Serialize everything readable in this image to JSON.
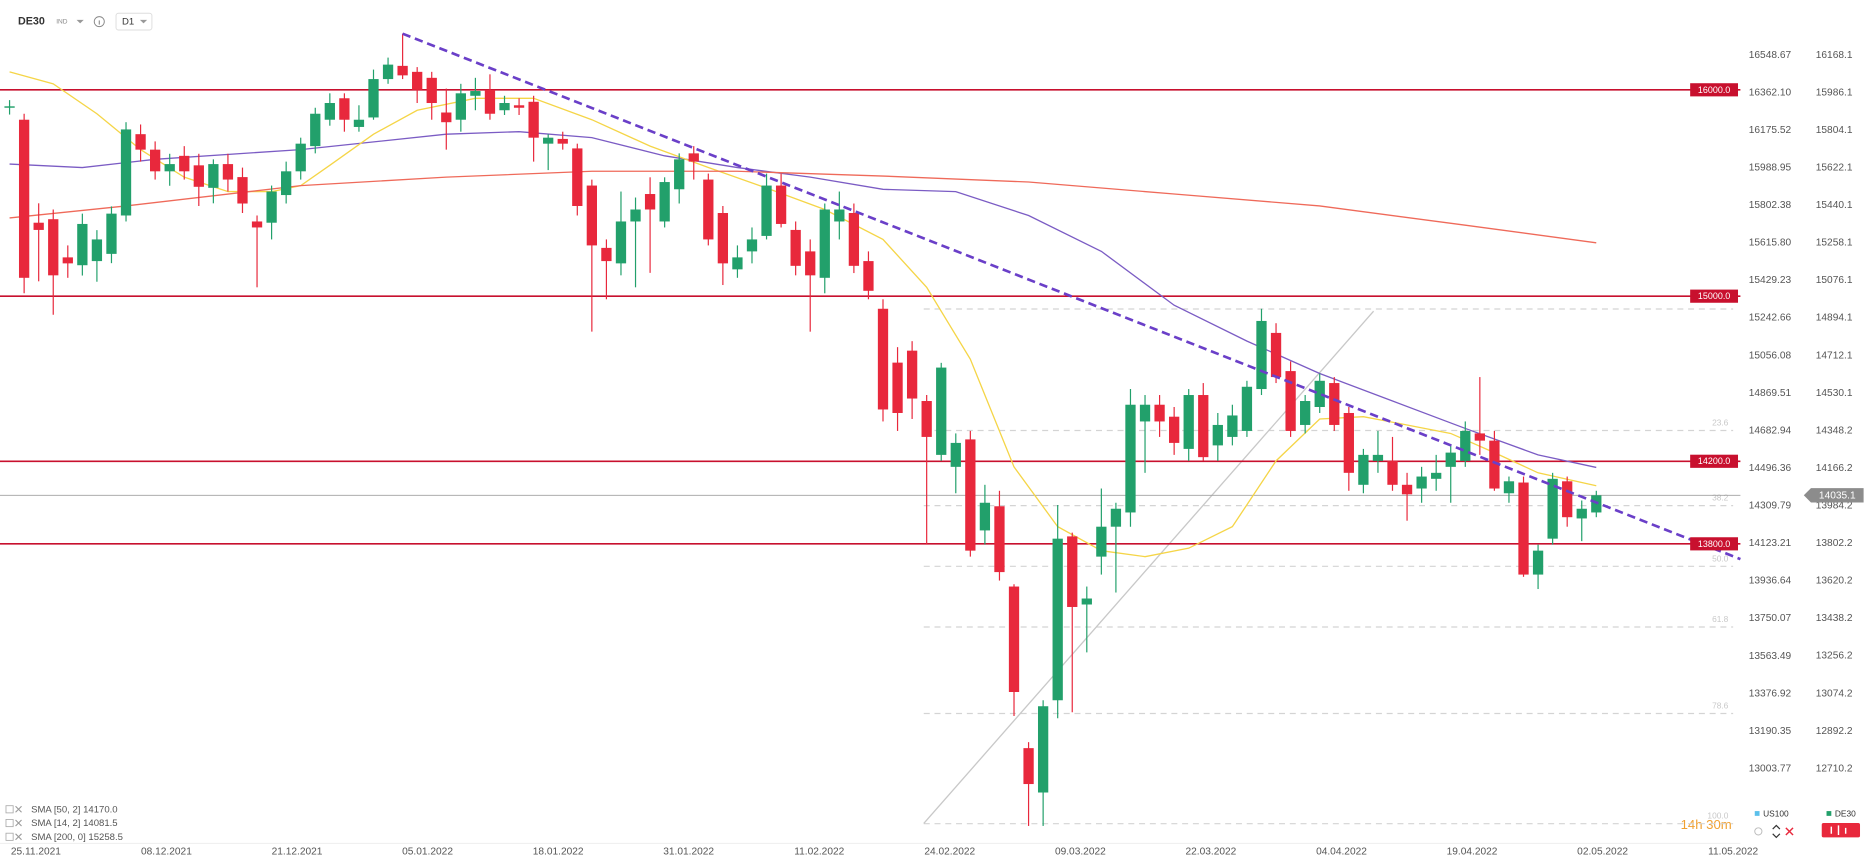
{
  "chart_data": {
    "type": "candlestick",
    "symbol": "DE30",
    "instrument_type": "IND",
    "timeframe": "D1",
    "countdown": "14h 30m",
    "categories": [
      "25.11.2021",
      "08.12.2021",
      "21.12.2021",
      "05.01.2022",
      "18.01.2022",
      "31.01.2022",
      "11.02.2022",
      "24.02.2022",
      "09.03.2022",
      "22.03.2022",
      "04.04.2022",
      "19.04.2022",
      "02.05.2022",
      "11.05.2022"
    ],
    "ylim": [
      12348.5,
      16434.7
    ],
    "yticks": [
      16168.1,
      15986.1,
      15804.1,
      15622.1,
      15440.1,
      15258.1,
      15076.1,
      14894.1,
      14712.1,
      14530.1,
      14348.2,
      14166.2,
      13984.2,
      13802.2,
      13620.2,
      13438.2,
      13256.2,
      13074.2,
      12892.2,
      12710.2
    ],
    "y2lim": [
      12633.1,
      16822.0
    ],
    "y2ticks": [
      16548.67,
      {
        "value": 16362.1,
        "label": "16362.10"
      },
      16175.52,
      15988.95,
      15802.38,
      {
        "value": 15615.8,
        "label": "15615.80"
      },
      15429.23,
      15242.66,
      15056.08,
      14869.51,
      14682.94,
      14496.36,
      14309.79,
      14123.21,
      13936.64,
      13750.07,
      13563.49,
      13376.92,
      13190.35,
      13003.77
    ],
    "grid": false,
    "comparison_legend": [
      {
        "name": "US100",
        "color": "#5bc0eb"
      },
      {
        "name": "DE30",
        "color": "#22a06b"
      }
    ],
    "series": [
      {
        "name": "DE30",
        "up_color": "#22a06b",
        "down_color": "#e8283c",
        "open": [
          15915,
          15855,
          15356,
          15373,
          15188,
          15150,
          15170,
          15205,
          15391,
          15785,
          15710,
          15605,
          15680,
          15634,
          15525,
          15640,
          15577,
          15362,
          15356,
          15490,
          15605,
          15727,
          15855,
          15959,
          15820,
          15866,
          16052,
          16116,
          16087,
          16058,
          15890,
          15855,
          15971,
          16000,
          15901,
          15925,
          15942,
          15739,
          15762,
          15716,
          15536,
          15234,
          15159,
          15362,
          15495,
          15362,
          15518,
          15692,
          15565,
          15403,
          15130,
          15217,
          15292,
          15536,
          15321,
          15217,
          15089,
          15362,
          15403,
          15170,
          14939,
          14678,
          14736,
          14492,
          14231,
          14173,
          14306,
          13865,
          13982,
          13593,
          12810,
          12595,
          13042,
          13836,
          13506,
          13738,
          13883,
          13952,
          14393,
          14474,
          14416,
          14260,
          14521,
          14277,
          14318,
          14347,
          14550,
          14822,
          14637,
          14376,
          14463,
          14579,
          14434,
          14086,
          14202,
          14202,
          14086,
          14068,
          14115,
          14173,
          14202,
          14335,
          14300,
          14045,
          14097,
          13651,
          13825,
          14103,
          13923,
          13952
        ],
        "high": [
          15950,
          15884,
          15450,
          15420,
          15246,
          15400,
          15320,
          15435,
          15843,
          15832,
          15750,
          15690,
          15727,
          15690,
          15663,
          15690,
          15623,
          15391,
          15536,
          15652,
          15768,
          15913,
          15983,
          15983,
          15925,
          16098,
          16156,
          16272,
          16110,
          16087,
          16006,
          16029,
          16058,
          16075,
          15971,
          15959,
          15971,
          15785,
          15797,
          15739,
          15565,
          15275,
          15507,
          15478,
          15576,
          15576,
          15692,
          15727,
          15594,
          15437,
          15246,
          15333,
          15594,
          15594,
          15362,
          15275,
          15449,
          15507,
          15449,
          15217,
          14985,
          14753,
          14782,
          14521,
          14677,
          14335,
          14347,
          14086,
          14057,
          13604,
          12839,
          13042,
          13988,
          13854,
          13593,
          14068,
          13999,
          14550,
          14521,
          14521,
          14463,
          14550,
          14579,
          14434,
          14474,
          14590,
          14939,
          14869,
          14684,
          14521,
          14625,
          14608,
          14463,
          14260,
          14347,
          14318,
          14144,
          14173,
          14231,
          14277,
          14393,
          14608,
          14347,
          14126,
          14126,
          13796,
          14144,
          14126,
          14010,
          14057
        ],
        "low": [
          15880,
          15014,
          15072,
          14910,
          15089,
          15100,
          15070,
          15160,
          15362,
          15652,
          15565,
          15535,
          15565,
          15437,
          15450,
          15507,
          15403,
          15043,
          15275,
          15449,
          15565,
          15692,
          15826,
          15797,
          15797,
          15855,
          16029,
          16052,
          15936,
          15855,
          15710,
          15797,
          15901,
          15855,
          15878,
          15878,
          15652,
          15611,
          15710,
          15391,
          14828,
          14985,
          15101,
          15043,
          15113,
          15333,
          15449,
          15565,
          15246,
          15054,
          15089,
          15159,
          15275,
          15333,
          15101,
          14828,
          15014,
          15275,
          15112,
          14985,
          14393,
          14347,
          14405,
          13796,
          14202,
          14045,
          13738,
          13796,
          13622,
          12966,
          12433,
          12433,
          12955,
          12984,
          13274,
          13651,
          13564,
          13883,
          14144,
          14318,
          14231,
          14202,
          14202,
          14202,
          14277,
          14318,
          14521,
          14579,
          14318,
          14335,
          14434,
          14347,
          14057,
          14045,
          14144,
          14057,
          13912,
          13999,
          14057,
          13999,
          14173,
          14231,
          14057,
          13999,
          13640,
          13581,
          13796,
          13883,
          13813,
          13929
        ],
        "close": [
          15920,
          15089,
          15321,
          15101,
          15159,
          15350,
          15275,
          15400,
          15808,
          15710,
          15605,
          15640,
          15605,
          15530,
          15640,
          15565,
          15449,
          15333,
          15507,
          15605,
          15739,
          15884,
          15936,
          15855,
          15855,
          16052,
          16122,
          16070,
          16000,
          15936,
          15843,
          15983,
          15994,
          15884,
          15936,
          15913,
          15768,
          15768,
          15739,
          15437,
          15246,
          15170,
          15362,
          15420,
          15420,
          15553,
          15663,
          15652,
          15275,
          15159,
          15188,
          15275,
          15536,
          15350,
          15147,
          15101,
          15420,
          15420,
          15147,
          15026,
          14451,
          14434,
          14504,
          14318,
          14654,
          14289,
          13767,
          13999,
          13663,
          13082,
          12636,
          13013,
          13825,
          13494,
          13535,
          13883,
          13970,
          14474,
          14474,
          14393,
          14289,
          14521,
          14220,
          14376,
          14422,
          14561,
          14880,
          14608,
          14347,
          14492,
          14590,
          14376,
          14144,
          14231,
          14231,
          14086,
          14040,
          14126,
          14144,
          14242,
          14347,
          14300,
          14068,
          14103,
          13651,
          13767,
          14115,
          13929,
          13970,
          14035
        ]
      }
    ],
    "indicators": [
      {
        "name": "SMA [50, 2] 14170.0",
        "color": "#7b5cc4",
        "x": [
          0,
          5,
          10,
          20,
          30,
          35,
          40,
          45,
          50,
          55,
          60,
          65,
          70,
          75,
          80,
          85,
          90,
          95,
          100,
          105,
          109
        ],
        "values": [
          15640,
          15623,
          15663,
          15710,
          15785,
          15797,
          15768,
          15680,
          15623,
          15577,
          15518,
          15507,
          15391,
          15217,
          14956,
          14782,
          14625,
          14492,
          14359,
          14231,
          14170
        ]
      },
      {
        "name": "SMA [14, 2] 14081.5",
        "color": "#f5d547",
        "x": [
          0,
          3,
          6,
          9,
          12,
          15,
          18,
          20,
          22,
          25,
          28,
          32,
          36,
          40,
          44,
          48,
          52,
          56,
          60,
          63,
          66,
          69,
          72,
          75,
          78,
          81,
          84,
          87,
          90,
          93,
          96,
          99,
          102,
          105,
          109
        ],
        "values": [
          16087,
          16029,
          15884,
          15710,
          15577,
          15507,
          15507,
          15536,
          15634,
          15785,
          15901,
          15959,
          15959,
          15855,
          15727,
          15623,
          15524,
          15420,
          15275,
          15043,
          14695,
          14173,
          13883,
          13767,
          13738,
          13779,
          13883,
          14202,
          14405,
          14416,
          14376,
          14335,
          14242,
          14144,
          14081.5
        ]
      },
      {
        "name": "SMA [200, 0] 15258.5",
        "color": "#ef6a5a",
        "x": [
          0,
          8,
          20,
          30,
          40,
          50,
          60,
          70,
          80,
          90,
          100,
          109
        ],
        "values": [
          15379,
          15437,
          15536,
          15577,
          15605,
          15605,
          15582,
          15553,
          15495,
          15437,
          15344,
          15258.5
        ]
      }
    ],
    "levels": [
      {
        "value": 16000,
        "label": "16000.0"
      },
      {
        "value": 15000,
        "label": "15000.0"
      },
      {
        "value": 14200,
        "label": "14200.0"
      },
      {
        "value": 13800,
        "label": "13800.0"
      }
    ],
    "level_color": "#c8102e",
    "last_price": 14035.1,
    "trend_lines": [
      {
        "color": "#c8c8c8",
        "dashed": false,
        "x": [
          62.8,
          93.7
        ],
        "values": [
          12445,
          14927
        ]
      },
      {
        "color": "#6a3fc8",
        "dashed": true,
        "x": [
          27,
          118.9
        ],
        "values": [
          16272,
          13726
        ]
      }
    ],
    "fibonacci": {
      "x": [
        62.8,
        118.4
      ],
      "levels": [
        {
          "value": 14938
        },
        {
          "name": "23.6",
          "value": 14349
        },
        {
          "name": "38.2",
          "value": 13985
        },
        {
          "name": "50.0",
          "value": 13691
        },
        {
          "name": "61.8",
          "value": 13397
        },
        {
          "name": "78.6",
          "value": 12978
        },
        {
          "name": "100.0",
          "value": 12444
        }
      ]
    }
  }
}
